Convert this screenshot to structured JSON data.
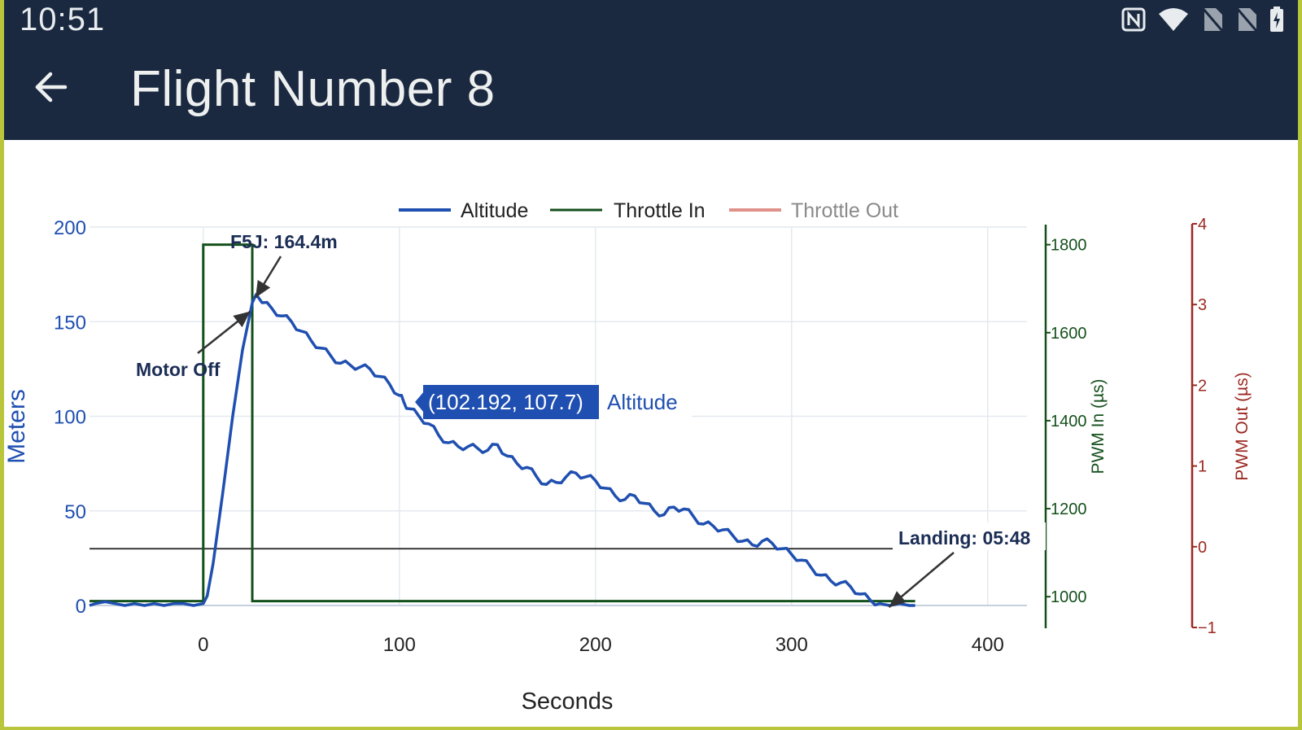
{
  "status_bar": {
    "time": "10:51",
    "icons": [
      "nfc-icon",
      "wifi-icon",
      "no-sim-icon",
      "no-sim-icon",
      "battery-charging-icon"
    ]
  },
  "app_bar": {
    "title": "Flight Number 8",
    "back_icon": "arrow-left-icon"
  },
  "colors": {
    "altitude": "#1f4fb0",
    "throttle_in": "#14501c",
    "throttle_out": "#e0928a",
    "pwm_out_axis": "#9c2a22",
    "header_bg": "#1a2940",
    "tooltip_bg": "#1f4fb0"
  },
  "chart_data": {
    "type": "line",
    "legend": {
      "placement": "top-center",
      "entries": [
        "Altitude",
        "Throttle In",
        "Throttle Out"
      ]
    },
    "xlabel": "Seconds",
    "xlim": [
      -58,
      420
    ],
    "xticks": [
      "0",
      "100",
      "200",
      "300",
      "400"
    ],
    "xtick_values": [
      0,
      100,
      200,
      300,
      400
    ],
    "y_left": {
      "label": "Meters",
      "lim": [
        0,
        200
      ],
      "ticks": [
        "0",
        "50",
        "100",
        "150",
        "200"
      ],
      "tick_values": [
        0,
        50,
        100,
        150,
        200
      ]
    },
    "y_right1": {
      "label": "PWM In (µs)",
      "lim": [
        980,
        1840
      ],
      "ticks": [
        "1000",
        "1200",
        "1400",
        "1600",
        "1800"
      ],
      "tick_values": [
        1000,
        1200,
        1400,
        1600,
        1800
      ]
    },
    "y_right2": {
      "label": "PWM Out (µs)",
      "lim": [
        -1,
        4
      ],
      "ticks": [
        "−1",
        "0",
        "1",
        "2",
        "3",
        "4"
      ],
      "tick_values": [
        -1,
        0,
        1,
        2,
        3,
        4
      ]
    },
    "grid": true,
    "series": [
      {
        "name": "Altitude",
        "axis": "left",
        "x": [
          -58,
          -55,
          -50,
          -45,
          -40,
          -35,
          -30,
          -25,
          -20,
          -15,
          -10,
          -5,
          0,
          2,
          5,
          10,
          15,
          20,
          25,
          27,
          30,
          35,
          40,
          45,
          50,
          55,
          60,
          65,
          70,
          75,
          80,
          85,
          90,
          95,
          100,
          102.192,
          105,
          110,
          115,
          120,
          125,
          130,
          135,
          140,
          145,
          150,
          155,
          160,
          165,
          170,
          175,
          180,
          185,
          190,
          195,
          200,
          205,
          210,
          215,
          220,
          225,
          230,
          235,
          240,
          245,
          250,
          255,
          260,
          265,
          270,
          275,
          280,
          285,
          290,
          295,
          300,
          305,
          310,
          315,
          320,
          325,
          330,
          335,
          340,
          345,
          350,
          355,
          360,
          363
        ],
        "y": [
          0,
          1,
          2,
          1,
          0,
          1,
          0,
          1,
          0,
          1,
          1,
          0,
          1,
          5,
          22,
          60,
          100,
          135,
          160,
          164.4,
          160,
          157,
          153,
          150,
          145,
          140,
          136,
          132,
          128,
          127,
          126,
          125,
          121,
          117,
          111,
          107.7,
          104,
          100,
          96,
          90,
          86,
          84,
          84,
          83,
          82,
          85,
          79,
          75,
          73,
          68,
          64,
          65,
          68,
          70,
          68,
          66,
          62,
          58,
          56,
          58,
          54,
          50,
          48,
          52,
          51,
          47,
          43,
          42,
          40,
          37,
          34,
          32,
          34,
          33,
          30,
          27,
          24,
          20,
          16,
          13,
          12,
          10,
          6,
          3,
          1,
          0,
          1,
          0,
          0
        ]
      },
      {
        "name": "Throttle In",
        "axis": "right1",
        "x": [
          -58,
          0,
          0,
          24,
          24,
          25,
          25,
          363
        ],
        "y": [
          990,
          990,
          1800,
          1800,
          1800,
          1800,
          990,
          990
        ]
      },
      {
        "name": "Throttle Out",
        "axis": "right2",
        "x": [],
        "y": []
      }
    ],
    "reference_line": {
      "axis": "left",
      "y": 30
    },
    "annotations": [
      {
        "text": "F5J: 164.4m",
        "x": 25,
        "y": 164.4
      },
      {
        "text": "Motor Off",
        "x": 24,
        "y": 160
      },
      {
        "text": "Landing: 05:48",
        "x": 348,
        "y": 0
      }
    ],
    "tooltip": {
      "value": "(102.192, 107.7)",
      "series": "Altitude",
      "x": 102.192,
      "y": 107.7
    }
  }
}
